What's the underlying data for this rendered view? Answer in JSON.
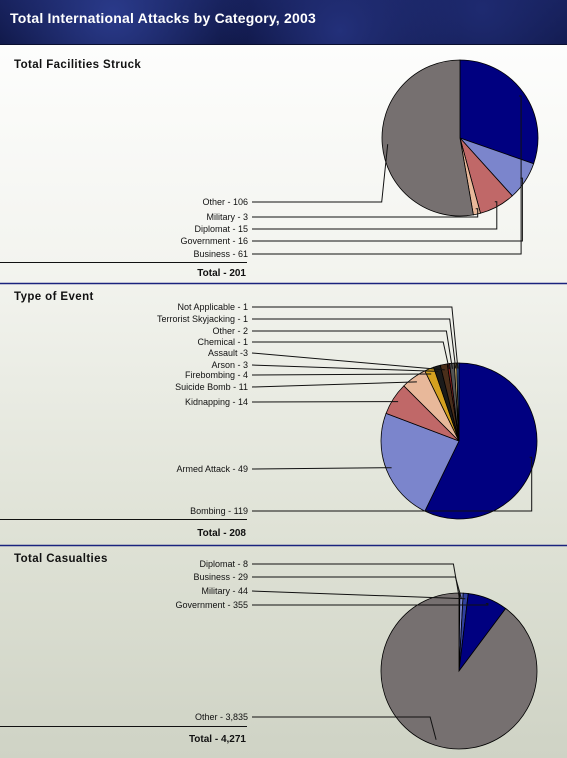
{
  "header": {
    "title": "Total International Attacks by Category, 2003"
  },
  "sections": [
    {
      "title": "Total Facilities Struck",
      "total": "Total - 201"
    },
    {
      "title": "Type of Event",
      "total": "Total - 208"
    },
    {
      "title": "Total Casualties",
      "total": "Total - 4,271"
    }
  ],
  "chart_data": [
    {
      "type": "pie",
      "title": "Total Facilities Struck",
      "total": 201,
      "slices": [
        {
          "label": "Business - 61",
          "category": "Business",
          "value": 61,
          "color": "#000080"
        },
        {
          "label": "Government - 16",
          "category": "Government",
          "value": 16,
          "color": "#7b85cc"
        },
        {
          "label": "Diplomat - 15",
          "category": "Diplomat",
          "value": 15,
          "color": "#c06868"
        },
        {
          "label": "Military - 3",
          "category": "Military",
          "value": 3,
          "color": "#e8b89a"
        },
        {
          "label": "Other - 106",
          "category": "Other",
          "value": 106,
          "color": "#767070"
        }
      ]
    },
    {
      "type": "pie",
      "title": "Type of Event",
      "total": 208,
      "slices": [
        {
          "label": "Bombing - 119",
          "category": "Bombing",
          "value": 119,
          "color": "#000080"
        },
        {
          "label": "Armed Attack - 49",
          "category": "Armed Attack",
          "value": 49,
          "color": "#7b85cc"
        },
        {
          "label": "Kidnapping - 14",
          "category": "Kidnapping",
          "value": 14,
          "color": "#c06868"
        },
        {
          "label": "Suicide Bomb - 11",
          "category": "Suicide Bomb",
          "value": 11,
          "color": "#e8b89a"
        },
        {
          "label": "Firebombing - 4",
          "category": "Firebombing",
          "value": 4,
          "color": "#d4a020"
        },
        {
          "label": "Arson - 3",
          "category": "Arson",
          "value": 3,
          "color": "#1a1a1a"
        },
        {
          "label": "Assault -3",
          "category": "Assault",
          "value": 3,
          "color": "#4a2e1a"
        },
        {
          "label": "Chemical - 1",
          "category": "Chemical",
          "value": 1,
          "color": "#8a2020"
        },
        {
          "label": "Other - 2",
          "category": "Other",
          "value": 2,
          "color": "#555555"
        },
        {
          "label": "Terrorist Skyjacking - 1",
          "category": "Terrorist Skyjacking",
          "value": 1,
          "color": "#c8b070"
        },
        {
          "label": "Not Applicable - 1",
          "category": "Not Applicable",
          "value": 1,
          "color": "#3050a0"
        }
      ]
    },
    {
      "type": "pie",
      "title": "Total Casualties",
      "total": 4271,
      "slices": [
        {
          "label": "Diplomat -  8",
          "category": "Diplomat",
          "value": 8,
          "color": "#c06868"
        },
        {
          "label": "Business - 29",
          "category": "Business",
          "value": 29,
          "color": "#7b85cc"
        },
        {
          "label": "Military -  44",
          "category": "Military",
          "value": 44,
          "color": "#3040a0"
        },
        {
          "label": "Government - 355",
          "category": "Government",
          "value": 355,
          "color": "#000080"
        },
        {
          "label": "Other - 3,835",
          "category": "Other",
          "value": 3835,
          "color": "#767070"
        }
      ]
    }
  ]
}
